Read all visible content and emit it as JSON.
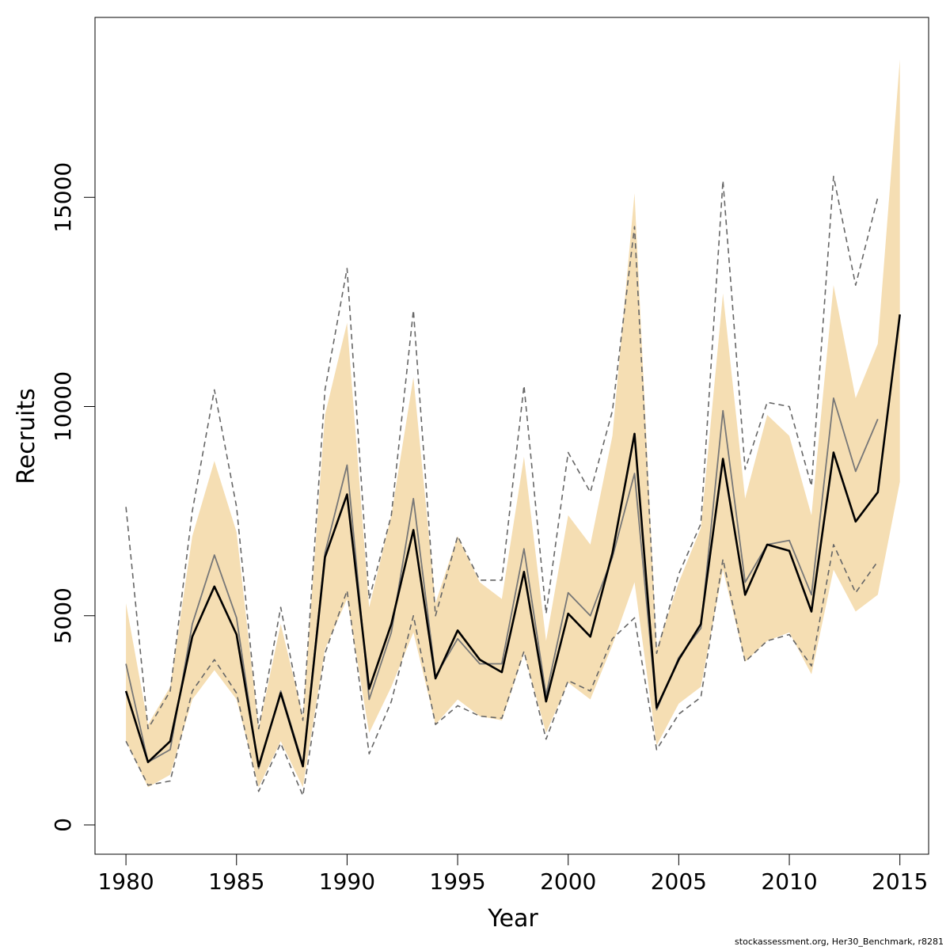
{
  "chart_data": {
    "type": "line",
    "xlabel": "Year",
    "ylabel": "Recruits",
    "xlim": [
      1978.6,
      2016.3
    ],
    "ylim": [
      -700,
      19300
    ],
    "x_ticks": [
      1980,
      1985,
      1990,
      1995,
      2000,
      2005,
      2010,
      2015
    ],
    "y_ticks": [
      0,
      5000,
      10000,
      15000
    ],
    "band_color": "#f5deb3",
    "x": [
      1980,
      1981,
      1982,
      1983,
      1984,
      1985,
      1986,
      1987,
      1988,
      1989,
      1990,
      1991,
      1992,
      1993,
      1994,
      1995,
      1996,
      1997,
      1998,
      1999,
      2000,
      2001,
      2002,
      2003,
      2004,
      2005,
      2006,
      2007,
      2008,
      2009,
      2010,
      2011,
      2012,
      2013,
      2014,
      2015
    ],
    "band_upper": [
      5300,
      2400,
      3300,
      6900,
      8700,
      7000,
      2300,
      4800,
      2600,
      9800,
      12000,
      5200,
      7400,
      10700,
      5300,
      6900,
      5800,
      5400,
      8800,
      4400,
      7400,
      6700,
      9300,
      15100,
      4200,
      5800,
      7100,
      12700,
      7800,
      9800,
      9300,
      7400,
      12900,
      10200,
      11500,
      18300
    ],
    "band_lower": [
      2000,
      900,
      1200,
      3000,
      3700,
      3000,
      900,
      2000,
      900,
      4200,
      5400,
      2200,
      3300,
      4600,
      2400,
      3000,
      2600,
      2500,
      4100,
      2200,
      3400,
      3000,
      4300,
      5800,
      1900,
      2900,
      3300,
      6100,
      3900,
      4400,
      4600,
      3600,
      6100,
      5100,
      5500,
      8200
    ],
    "series": [
      {
        "key": "estimate",
        "color": "#000000",
        "dashed": false,
        "width": 2.6,
        "values": [
          3200,
          1500,
          2000,
          4500,
          5700,
          4550,
          1400,
          3150,
          1400,
          6400,
          7900,
          3250,
          4800,
          7050,
          3500,
          4650,
          3950,
          3650,
          6050,
          2950,
          5050,
          4500,
          6500,
          9350,
          2800,
          3950,
          4800,
          8750,
          5500,
          6700,
          6550,
          5100,
          8900,
          7250,
          7950,
          12200
        ]
      },
      {
        "key": "previous",
        "color": "#777777",
        "dashed": false,
        "width": 1.8,
        "values": [
          3850,
          1500,
          1800,
          4800,
          6450,
          4950,
          1350,
          3200,
          1450,
          6500,
          8600,
          3000,
          4600,
          7800,
          3550,
          4450,
          3850,
          3850,
          6600,
          3100,
          5550,
          5000,
          6400,
          8400,
          2750,
          4000,
          4700,
          9900,
          5800,
          6700,
          6800,
          5500,
          10200,
          8450,
          9700,
          null
        ]
      },
      {
        "key": "previous-upper",
        "color": "#666666",
        "dashed": true,
        "width": 1.6,
        "values": [
          7600,
          2300,
          3200,
          7500,
          10400,
          7600,
          2300,
          5200,
          2500,
          10400,
          13300,
          5400,
          7400,
          12300,
          5000,
          6900,
          5850,
          5850,
          10500,
          5050,
          8900,
          7950,
          9900,
          14300,
          4100,
          6000,
          7200,
          15400,
          8500,
          10100,
          10000,
          8100,
          15500,
          12900,
          15000,
          null
        ]
      },
      {
        "key": "previous-lower",
        "color": "#666666",
        "dashed": true,
        "width": 1.6,
        "values": [
          2000,
          950,
          1050,
          3200,
          3950,
          3150,
          800,
          1950,
          700,
          4100,
          5600,
          1700,
          2950,
          5000,
          2400,
          2850,
          2600,
          2550,
          4150,
          2050,
          3450,
          3200,
          4450,
          4950,
          1800,
          2650,
          3050,
          6350,
          3900,
          4400,
          4550,
          3800,
          6700,
          5550,
          6300,
          null
        ]
      }
    ]
  },
  "footer": "stockassessment.org, Her30_Benchmark, r8281"
}
